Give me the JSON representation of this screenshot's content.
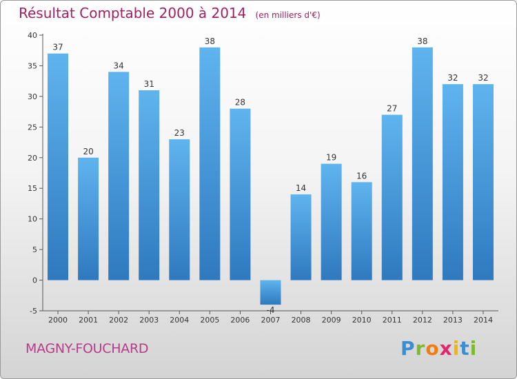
{
  "header": {
    "title": "Résultat Comptable 2000 à 2014",
    "subtitle": "(en milliers d'€)"
  },
  "footer": {
    "commune": "MAGNY-FOUCHARD",
    "brand_letters": [
      "P",
      "r",
      "o",
      "x",
      "i",
      "t",
      "i"
    ],
    "brand_colors": [
      "#3b8fd1",
      "#7cba2e",
      "#f07d10",
      "#e3256b",
      "#f2b705",
      "#3b8fd1",
      "#7cba2e"
    ]
  },
  "colors": {
    "bar_top": "#5fb4ee",
    "bar_bottom": "#2f79bf",
    "title": "#a11f5c"
  },
  "chart_data": {
    "type": "bar",
    "title": "Résultat Comptable 2000 à 2014",
    "subtitle": "(en milliers d'€)",
    "xlabel": "",
    "ylabel": "",
    "categories": [
      "2000",
      "2001",
      "2002",
      "2003",
      "2004",
      "2005",
      "2006",
      "2007",
      "2008",
      "2009",
      "2010",
      "2011",
      "2012",
      "2013",
      "2014"
    ],
    "values": [
      37,
      20,
      34,
      31,
      23,
      38,
      28,
      -4,
      14,
      19,
      16,
      27,
      38,
      32,
      32
    ],
    "ylim": [
      -5,
      40
    ],
    "yticks": [
      -5,
      0,
      5,
      10,
      15,
      20,
      25,
      30,
      35,
      40
    ],
    "grid": false,
    "legend": "none"
  }
}
